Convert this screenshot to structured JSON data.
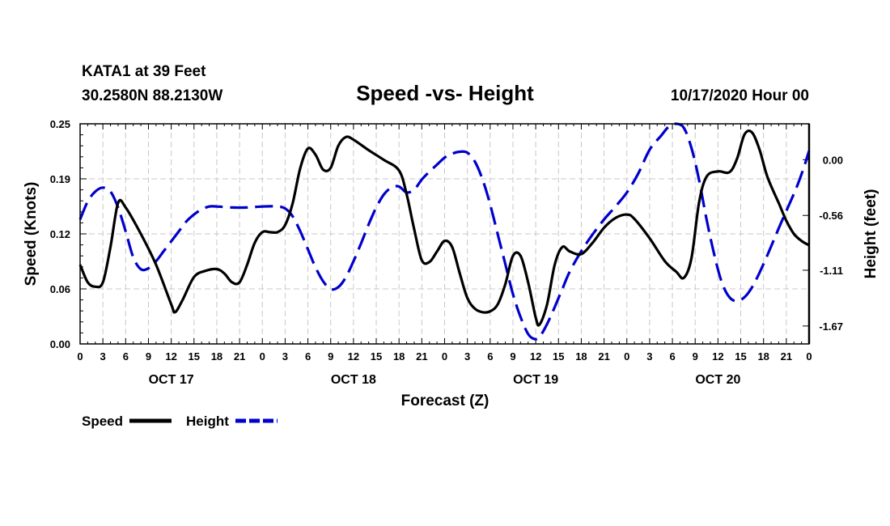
{
  "header": {
    "station": "KATA1 at 39 Feet",
    "coords": "30.2580N 88.2130W",
    "title": "Speed -vs- Height",
    "datetime": "10/17/2020 Hour 00"
  },
  "legend": {
    "speed_label": "Speed",
    "height_label": "Height"
  },
  "chart_data": {
    "type": "line",
    "title": "Speed -vs- Height",
    "xlabel": "Forecast (Z)",
    "ylabel_left": "Speed (Knots)",
    "ylabel_right": "Height (feet)",
    "x_unit": "forecast hour",
    "xlim": [
      0,
      96
    ],
    "ylim_left": [
      0,
      0.25
    ],
    "ylim_right": [
      -1.85,
      0.36
    ],
    "grid": true,
    "x_tick_labels": [
      "0",
      "3",
      "6",
      "9",
      "12",
      "15",
      "18",
      "21",
      "0",
      "3",
      "6",
      "9",
      "12",
      "15",
      "18",
      "21",
      "0",
      "3",
      "6",
      "9",
      "12",
      "15",
      "18",
      "21",
      "0",
      "3",
      "6",
      "9",
      "12",
      "15",
      "18",
      "21",
      "0"
    ],
    "day_labels": [
      {
        "label": "OCT 17",
        "hour": 12
      },
      {
        "label": "OCT 18",
        "hour": 36
      },
      {
        "label": "OCT 19",
        "hour": 60
      },
      {
        "label": "OCT 20",
        "hour": 84
      }
    ],
    "left_ticks": [
      "0.00",
      "0.06",
      "0.12",
      "0.19",
      "0.25"
    ],
    "left_tick_values": [
      0,
      0.0625,
      0.125,
      0.1875,
      0.25
    ],
    "right_ticks": [
      "0.00",
      "-0.56",
      "-1.11",
      "-1.67"
    ],
    "right_tick_values": [
      0,
      -0.56,
      -1.11,
      -1.67
    ],
    "series": [
      {
        "name": "Speed",
        "axis": "left",
        "color": "#000000",
        "style": "solid",
        "points": [
          [
            0,
            0.09
          ],
          [
            1,
            0.07
          ],
          [
            2,
            0.065
          ],
          [
            3,
            0.07
          ],
          [
            4,
            0.11
          ],
          [
            5,
            0.16
          ],
          [
            6,
            0.155
          ],
          [
            8,
            0.125
          ],
          [
            10,
            0.09
          ],
          [
            12,
            0.045
          ],
          [
            12.5,
            0.036
          ],
          [
            13.5,
            0.05
          ],
          [
            15,
            0.076
          ],
          [
            16.5,
            0.083
          ],
          [
            18,
            0.085
          ],
          [
            19,
            0.08
          ],
          [
            20,
            0.07
          ],
          [
            21,
            0.07
          ],
          [
            22,
            0.09
          ],
          [
            23,
            0.115
          ],
          [
            24,
            0.127
          ],
          [
            25,
            0.127
          ],
          [
            26,
            0.127
          ],
          [
            27,
            0.135
          ],
          [
            28,
            0.16
          ],
          [
            29,
            0.2
          ],
          [
            30,
            0.222
          ],
          [
            31,
            0.215
          ],
          [
            32,
            0.198
          ],
          [
            33,
            0.2
          ],
          [
            34,
            0.225
          ],
          [
            35,
            0.235
          ],
          [
            36,
            0.232
          ],
          [
            38,
            0.22
          ],
          [
            40,
            0.209
          ],
          [
            42,
            0.197
          ],
          [
            43,
            0.17
          ],
          [
            44,
            0.13
          ],
          [
            45,
            0.095
          ],
          [
            46,
            0.093
          ],
          [
            47,
            0.105
          ],
          [
            48,
            0.117
          ],
          [
            49,
            0.11
          ],
          [
            50,
            0.08
          ],
          [
            51,
            0.052
          ],
          [
            52,
            0.04
          ],
          [
            53,
            0.036
          ],
          [
            54,
            0.037
          ],
          [
            55,
            0.045
          ],
          [
            56,
            0.068
          ],
          [
            57,
            0.1
          ],
          [
            58,
            0.1
          ],
          [
            59,
            0.07
          ],
          [
            60,
            0.03
          ],
          [
            60.5,
            0.022
          ],
          [
            61.5,
            0.045
          ],
          [
            62.5,
            0.09
          ],
          [
            63.5,
            0.11
          ],
          [
            64.5,
            0.105
          ],
          [
            66,
            0.102
          ],
          [
            67.5,
            0.115
          ],
          [
            69,
            0.132
          ],
          [
            70.5,
            0.143
          ],
          [
            72,
            0.147
          ],
          [
            73,
            0.142
          ],
          [
            75,
            0.12
          ],
          [
            77,
            0.094
          ],
          [
            78.5,
            0.082
          ],
          [
            79.5,
            0.075
          ],
          [
            80.5,
            0.097
          ],
          [
            81.5,
            0.16
          ],
          [
            82.5,
            0.19
          ],
          [
            84,
            0.196
          ],
          [
            85.5,
            0.195
          ],
          [
            86.5,
            0.21
          ],
          [
            87.5,
            0.238
          ],
          [
            88.5,
            0.24
          ],
          [
            89.5,
            0.22
          ],
          [
            90.5,
            0.19
          ],
          [
            92,
            0.16
          ],
          [
            93,
            0.14
          ],
          [
            94,
            0.125
          ],
          [
            95,
            0.117
          ],
          [
            96,
            0.112
          ]
        ]
      },
      {
        "name": "Height",
        "axis": "right",
        "color": "#0000cc",
        "style": "dashed",
        "points": [
          [
            0,
            -0.6
          ],
          [
            1,
            -0.42
          ],
          [
            2,
            -0.32
          ],
          [
            3,
            -0.28
          ],
          [
            4,
            -0.32
          ],
          [
            5,
            -0.48
          ],
          [
            6,
            -0.72
          ],
          [
            7,
            -0.98
          ],
          [
            8,
            -1.1
          ],
          [
            9,
            -1.09
          ],
          [
            10,
            -1.02
          ],
          [
            11,
            -0.92
          ],
          [
            12,
            -0.82
          ],
          [
            13,
            -0.72
          ],
          [
            14,
            -0.62
          ],
          [
            15,
            -0.55
          ],
          [
            16,
            -0.5
          ],
          [
            17,
            -0.47
          ],
          [
            18,
            -0.47
          ],
          [
            20,
            -0.48
          ],
          [
            22,
            -0.48
          ],
          [
            24,
            -0.47
          ],
          [
            26,
            -0.47
          ],
          [
            27,
            -0.49
          ],
          [
            28,
            -0.57
          ],
          [
            29,
            -0.72
          ],
          [
            30,
            -0.9
          ],
          [
            31,
            -1.08
          ],
          [
            32,
            -1.22
          ],
          [
            33,
            -1.3
          ],
          [
            34,
            -1.28
          ],
          [
            35,
            -1.18
          ],
          [
            36,
            -1.02
          ],
          [
            37,
            -0.84
          ],
          [
            38,
            -0.65
          ],
          [
            39,
            -0.48
          ],
          [
            40,
            -0.35
          ],
          [
            41,
            -0.28
          ],
          [
            42,
            -0.27
          ],
          [
            43,
            -0.33
          ],
          [
            44,
            -0.3
          ],
          [
            45,
            -0.2
          ],
          [
            46,
            -0.12
          ],
          [
            47,
            -0.05
          ],
          [
            48,
            0.02
          ],
          [
            49,
            0.06
          ],
          [
            50,
            0.08
          ],
          [
            51,
            0.07
          ],
          [
            52,
            -0.02
          ],
          [
            53,
            -0.2
          ],
          [
            54,
            -0.45
          ],
          [
            55,
            -0.75
          ],
          [
            56,
            -1.05
          ],
          [
            57,
            -1.35
          ],
          [
            58,
            -1.58
          ],
          [
            59,
            -1.75
          ],
          [
            59.8,
            -1.8
          ],
          [
            60.5,
            -1.78
          ],
          [
            61.5,
            -1.65
          ],
          [
            62.5,
            -1.48
          ],
          [
            63.5,
            -1.3
          ],
          [
            64.5,
            -1.12
          ],
          [
            66,
            -0.92
          ],
          [
            67.5,
            -0.75
          ],
          [
            69,
            -0.6
          ],
          [
            70.5,
            -0.47
          ],
          [
            72,
            -0.33
          ],
          [
            73.5,
            -0.14
          ],
          [
            75,
            0.1
          ],
          [
            76.5,
            0.24
          ],
          [
            77.5,
            0.33
          ],
          [
            78.5,
            0.36
          ],
          [
            79.5,
            0.32
          ],
          [
            80.5,
            0.12
          ],
          [
            81.5,
            -0.2
          ],
          [
            82.5,
            -0.6
          ],
          [
            83.5,
            -0.95
          ],
          [
            84.5,
            -1.23
          ],
          [
            85.5,
            -1.38
          ],
          [
            86.5,
            -1.42
          ],
          [
            87.5,
            -1.38
          ],
          [
            88.5,
            -1.28
          ],
          [
            89.5,
            -1.13
          ],
          [
            90.5,
            -0.96
          ],
          [
            91.5,
            -0.78
          ],
          [
            92.5,
            -0.6
          ],
          [
            93.5,
            -0.43
          ],
          [
            94.5,
            -0.25
          ],
          [
            95.3,
            -0.08
          ],
          [
            96,
            0.09
          ]
        ]
      }
    ]
  }
}
